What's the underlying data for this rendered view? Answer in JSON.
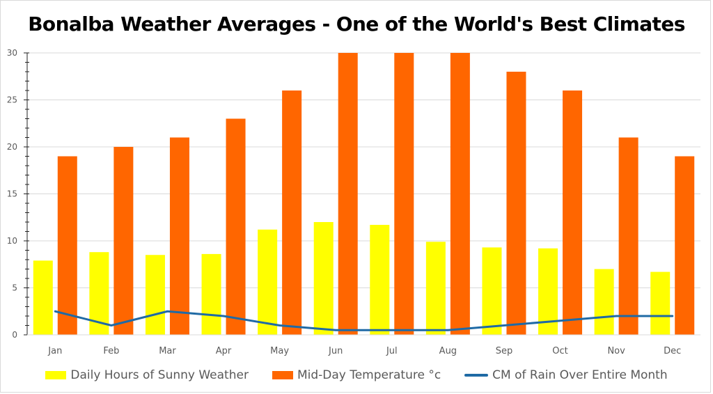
{
  "chart_data": {
    "type": "bar",
    "title": "Bonalba Weather Averages - One of the World's Best Climates",
    "xlabel": "",
    "ylabel": "",
    "ylim": [
      0,
      30
    ],
    "yticks": [
      0,
      5,
      10,
      15,
      20,
      25,
      30
    ],
    "minor_tick_step": 1,
    "grid": true,
    "legend_position": "bottom",
    "categories": [
      "Jan",
      "Feb",
      "Mar",
      "Apr",
      "May",
      "Jun",
      "Jul",
      "Aug",
      "Sep",
      "Oct",
      "Nov",
      "Dec"
    ],
    "series": [
      {
        "name": "Daily Hours of Sunny Weather",
        "type": "bar",
        "color": "#FFFF00",
        "values": [
          7.9,
          8.8,
          8.5,
          8.6,
          11.2,
          12.0,
          11.7,
          9.9,
          9.3,
          9.2,
          7.0,
          6.7
        ]
      },
      {
        "name": "Mid-Day Temperature °c",
        "type": "bar",
        "color": "#FF6600",
        "values": [
          19,
          20,
          21,
          23,
          26,
          30,
          30,
          30,
          28,
          26,
          21,
          19
        ]
      },
      {
        "name": "CM of Rain Over Entire Month",
        "type": "line",
        "color": "#1F6AA5",
        "values": [
          2.5,
          1,
          2.5,
          2,
          1,
          0.5,
          0.5,
          0.5,
          1,
          1.5,
          2,
          2
        ]
      }
    ]
  }
}
